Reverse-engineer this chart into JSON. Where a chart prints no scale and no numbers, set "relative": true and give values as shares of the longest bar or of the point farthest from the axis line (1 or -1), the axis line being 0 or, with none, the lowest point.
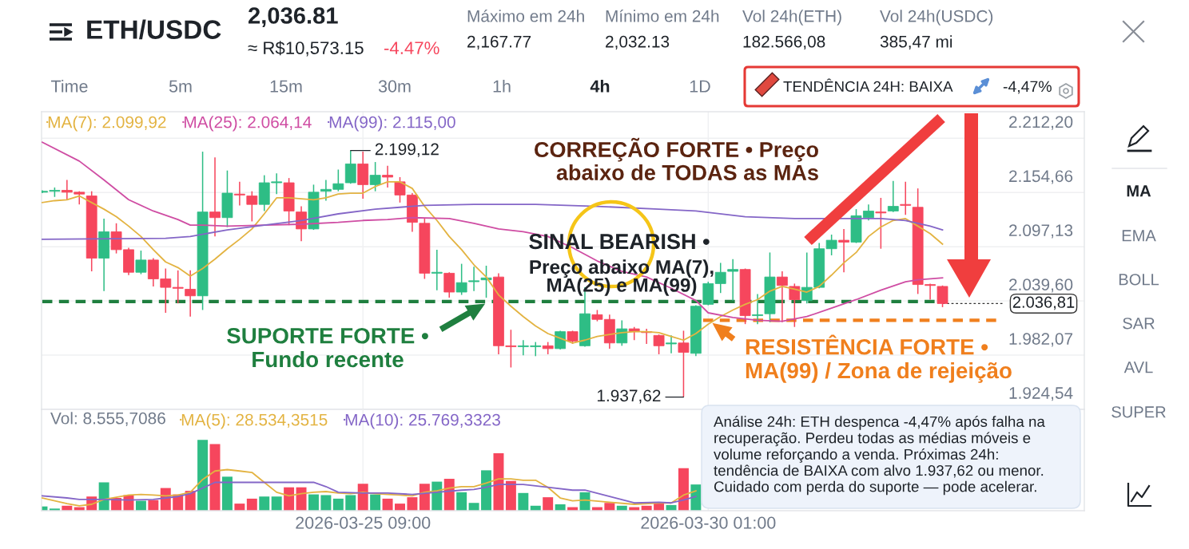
{
  "chart_data": [
    {
      "type": "candlestick",
      "title": "ETH/USDC",
      "x": [
        "2026-03-21T01:00",
        "2026-03-21T05:00",
        "2026-03-21T09:00",
        "2026-03-21T13:00",
        "2026-03-21T17:00",
        "2026-03-21T21:00",
        "2026-03-22T01:00",
        "2026-03-22T05:00",
        "2026-03-22T09:00",
        "2026-03-22T13:00",
        "2026-03-22T17:00",
        "2026-03-22T21:00",
        "2026-03-23T01:00",
        "2026-03-23T05:00",
        "2026-03-23T09:00",
        "2026-03-23T13:00",
        "2026-03-23T17:00",
        "2026-03-23T21:00",
        "2026-03-24T01:00",
        "2026-03-24T05:00",
        "2026-03-24T09:00",
        "2026-03-24T13:00",
        "2026-03-24T17:00",
        "2026-03-24T21:00",
        "2026-03-25T01:00",
        "2026-03-25T05:00",
        "2026-03-25T09:00",
        "2026-03-25T13:00",
        "2026-03-25T17:00",
        "2026-03-25T21:00",
        "2026-03-26T01:00",
        "2026-03-26T05:00",
        "2026-03-26T09:00",
        "2026-03-26T13:00",
        "2026-03-26T17:00",
        "2026-03-26T21:00",
        "2026-03-27T01:00",
        "2026-03-27T05:00",
        "2026-03-27T09:00",
        "2026-03-27T13:00",
        "2026-03-27T17:00",
        "2026-03-27T21:00",
        "2026-03-28T01:00",
        "2026-03-28T05:00",
        "2026-03-28T09:00",
        "2026-03-28T13:00",
        "2026-03-28T17:00",
        "2026-03-28T21:00",
        "2026-03-29T01:00",
        "2026-03-29T05:00",
        "2026-03-29T09:00",
        "2026-03-29T13:00",
        "2026-03-29T17:00",
        "2026-03-29T21:00",
        "2026-03-30T01:00",
        "2026-03-30T05:00",
        "2026-03-30T09:00",
        "2026-03-30T13:00",
        "2026-03-30T17:00",
        "2026-03-30T21:00",
        "2026-03-31T01:00",
        "2026-03-31T05:00",
        "2026-03-31T09:00",
        "2026-03-31T13:00",
        "2026-03-31T17:00",
        "2026-03-31T21:00",
        "2026-04-01T01:00",
        "2026-04-01T05:00",
        "2026-04-01T09:00",
        "2026-04-01T13:00",
        "2026-04-01T17:00",
        "2026-04-01T21:00",
        "2026-04-02T01:00",
        "2026-04-02T05:00"
      ],
      "ohlc": [
        [
          2155,
          2157,
          2154,
          2156
        ],
        [
          2156,
          2160,
          2150,
          2157
        ],
        [
          2157,
          2168,
          2147,
          2155
        ],
        [
          2155,
          2156,
          2142,
          2153
        ],
        [
          2151,
          2156,
          2071,
          2085
        ],
        [
          2085,
          2127,
          2050,
          2113
        ],
        [
          2113,
          2122,
          2090,
          2094
        ],
        [
          2094,
          2096,
          2067,
          2070
        ],
        [
          2070,
          2093,
          2068,
          2083
        ],
        [
          2083,
          2085,
          2055,
          2063
        ],
        [
          2063,
          2074,
          2027,
          2054
        ],
        [
          2054,
          2072,
          2037,
          2053
        ],
        [
          2052,
          2072,
          2023,
          2045
        ],
        [
          2045,
          2198,
          2030,
          2134
        ],
        [
          2134,
          2192,
          2108,
          2128
        ],
        [
          2128,
          2178,
          2118,
          2154
        ],
        [
          2153,
          2166,
          2141,
          2152
        ],
        [
          2151,
          2156,
          2124,
          2142
        ],
        [
          2142,
          2173,
          2135,
          2165
        ],
        [
          2165,
          2175,
          2153,
          2166
        ],
        [
          2165,
          2170,
          2120,
          2135
        ],
        [
          2134,
          2140,
          2103,
          2116
        ],
        [
          2116,
          2163,
          2115,
          2155
        ],
        [
          2156,
          2168,
          2146,
          2158
        ],
        [
          2158,
          2179,
          2156,
          2164
        ],
        [
          2165,
          2199.12,
          2164,
          2185
        ],
        [
          2185,
          2198,
          2148,
          2163
        ],
        [
          2163,
          2187,
          2156,
          2173
        ],
        [
          2173,
          2183,
          2160,
          2171
        ],
        [
          2166,
          2171,
          2144,
          2152
        ],
        [
          2152,
          2154,
          2113,
          2123
        ],
        [
          2122,
          2127,
          2063,
          2069
        ],
        [
          2069,
          2094,
          2051,
          2070
        ],
        [
          2069,
          2070,
          2043,
          2049
        ],
        [
          2049,
          2079,
          2046,
          2059
        ],
        [
          2060,
          2076,
          2050,
          2061
        ],
        [
          2062,
          2077,
          2043,
          2064
        ],
        [
          2065,
          2069,
          1983,
          1992
        ],
        [
          1992,
          2009,
          1969,
          1991
        ],
        [
          1991,
          1998,
          1982,
          1992
        ],
        [
          1991,
          1996,
          1981,
          1992
        ],
        [
          1992,
          1996,
          1983,
          1989
        ],
        [
          1989,
          2008,
          1988,
          2007
        ],
        [
          2007,
          2008,
          1994,
          1997
        ],
        [
          1992,
          2054,
          1991,
          2026
        ],
        [
          2025,
          2030,
          2018,
          2020
        ],
        [
          2020,
          2025,
          1989,
          1995
        ],
        [
          1995,
          2019,
          1992,
          2010
        ],
        [
          2010,
          2012,
          1998,
          2007
        ],
        [
          2007,
          2010,
          1994,
          2006
        ],
        [
          2003,
          2004,
          1983,
          1992
        ],
        [
          1994,
          2003,
          1984,
          1995
        ],
        [
          1995,
          2008,
          1937.62,
          1985
        ],
        [
          1984,
          2035,
          1981,
          2034
        ],
        [
          2036,
          2060,
          2035,
          2058
        ],
        [
          2058,
          2080,
          2048,
          2070
        ],
        [
          2071,
          2084,
          2040,
          2073
        ],
        [
          2073,
          2074,
          2015,
          2024
        ],
        [
          2024,
          2047,
          2015,
          2025
        ],
        [
          2026,
          2091,
          2017,
          2065
        ],
        [
          2065,
          2071,
          2017,
          2056
        ],
        [
          2055,
          2058,
          2012,
          2041
        ],
        [
          2040,
          2091,
          2037,
          2054
        ],
        [
          2054,
          2101,
          2053,
          2095
        ],
        [
          2095,
          2110,
          2088,
          2104
        ],
        [
          2104,
          2116,
          2070,
          2102
        ],
        [
          2102,
          2137,
          2101,
          2130
        ],
        [
          2128,
          2142,
          2125,
          2135
        ],
        [
          2134,
          2149,
          2095,
          2133
        ],
        [
          2135,
          2167,
          2134,
          2140
        ],
        [
          2142,
          2166,
          2131,
          2141
        ],
        [
          2139,
          2159,
          2047,
          2057
        ],
        [
          2057,
          2058,
          2041,
          2056
        ],
        [
          2055,
          2056,
          2033,
          2036.81
        ]
      ],
      "colors": [
        "#2ebd85",
        "#2ebd85",
        "#f6465d",
        "#f6465d",
        "#f6465d",
        "#2ebd85",
        "#f6465d",
        "#f6465d",
        "#2ebd85",
        "#f6465d",
        "#f6465d",
        "#f6465d",
        "#f6465d",
        "#2ebd85",
        "#f6465d",
        "#2ebd85",
        "#f6465d",
        "#f6465d",
        "#2ebd85",
        "#2ebd85",
        "#f6465d",
        "#f6465d",
        "#2ebd85",
        "#2ebd85",
        "#2ebd85",
        "#2ebd85",
        "#f6465d",
        "#2ebd85",
        "#f6465d",
        "#f6465d",
        "#f6465d",
        "#f6465d",
        "#2ebd85",
        "#f6465d",
        "#2ebd85",
        "#2ebd85",
        "#2ebd85",
        "#f6465d",
        "#f6465d",
        "#2ebd85",
        "#2ebd85",
        "#f6465d",
        "#2ebd85",
        "#f6465d",
        "#2ebd85",
        "#f6465d",
        "#f6465d",
        "#2ebd85",
        "#f6465d",
        "#f6465d",
        "#f6465d",
        "#2ebd85",
        "#f6465d",
        "#2ebd85",
        "#2ebd85",
        "#2ebd85",
        "#2ebd85",
        "#f6465d",
        "#2ebd85",
        "#2ebd85",
        "#f6465d",
        "#f6465d",
        "#2ebd85",
        "#2ebd85",
        "#2ebd85",
        "#f6465d",
        "#2ebd85",
        "#2ebd85",
        "#f6465d",
        "#2ebd85",
        "#f6465d",
        "#f6465d",
        "#f6465d",
        "#f6465d"
      ],
      "series": [
        {
          "name": "MA(7): 2.099,92",
          "type": "line",
          "color": "#e3b341",
          "values": [
            2144,
            2146,
            2147,
            2151,
            2144,
            2137,
            2129,
            2119,
            2108,
            2094,
            2081,
            2075,
            2066,
            2074,
            2084,
            2095,
            2105,
            2116,
            2132,
            2149,
            2149,
            2148,
            2147,
            2149,
            2153,
            2154,
            2154,
            2161,
            2166,
            2166,
            2159,
            2140,
            2125,
            2108,
            2094,
            2078,
            2065,
            2046,
            2034,
            2023,
            2013,
            2005,
            2000,
            1995,
            1998,
            2002,
            2004,
            2006,
            2007,
            2007,
            2006,
            2002,
            1998,
            2005,
            2015,
            2023,
            2030,
            2036,
            2041,
            2050,
            2055,
            2052,
            2049,
            2055,
            2067,
            2080,
            2091,
            2108,
            2118,
            2125,
            2127,
            2119,
            2111,
            2099.92
          ]
        },
        {
          "name": "MA(25): 2.064,14",
          "type": "line",
          "color": "#cf4da3",
          "x": [
            "2026-03-21T01:00",
            "2026-03-21T13:00",
            "2026-03-21T21:00",
            "2026-03-22T05:00",
            "2026-03-22T13:00",
            "2026-03-22T21:00",
            "2026-03-23T01:00",
            "2026-03-23T05:00",
            "2026-03-23T13:00",
            "2026-03-24T01:00",
            "2026-03-24T13:00",
            "2026-03-25T01:00",
            "2026-03-25T09:00",
            "2026-03-25T17:00",
            "2026-03-26T01:00",
            "2026-03-26T13:00",
            "2026-03-26T21:00",
            "2026-03-27T05:00",
            "2026-03-27T13:00",
            "2026-03-27T21:00",
            "2026-03-28T05:00",
            "2026-03-28T13:00",
            "2026-03-28T21:00",
            "2026-03-29T05:00",
            "2026-03-29T13:00",
            "2026-03-29T21:00",
            "2026-03-30T01:00",
            "2026-03-30T09:00",
            "2026-03-30T17:00",
            "2026-03-31T01:00",
            "2026-03-31T09:00",
            "2026-03-31T17:00",
            "2026-04-01T01:00",
            "2026-04-01T09:00",
            "2026-04-01T17:00",
            "2026-04-01T21:00",
            "2026-04-02T05:00"
          ],
          "values": [
            2208,
            2188,
            2168,
            2147,
            2135,
            2126,
            2120,
            2120,
            2119,
            2120,
            2121,
            2123,
            2125,
            2126,
            2128,
            2127,
            2122,
            2116,
            2113,
            2108,
            2096,
            2082,
            2071,
            2065,
            2053,
            2040,
            2027,
            2022,
            2019,
            2018,
            2023,
            2032,
            2041,
            2051,
            2060,
            2062,
            2064.14
          ]
        },
        {
          "name": "MA(99): 2.115,00",
          "type": "line",
          "color": "#8466c7",
          "x": [
            "2026-03-21T01:00",
            "2026-03-22T17:00",
            "2026-03-23T01:00",
            "2026-03-23T13:00",
            "2026-03-24T01:00",
            "2026-03-24T13:00",
            "2026-03-25T01:00",
            "2026-03-25T13:00",
            "2026-03-25T21:00",
            "2026-03-26T05:00",
            "2026-03-26T21:00",
            "2026-03-27T17:00",
            "2026-03-28T13:00",
            "2026-03-29T09:00",
            "2026-03-29T21:00",
            "2026-03-30T13:00",
            "2026-03-31T05:00",
            "2026-03-31T21:00",
            "2026-04-01T09:00",
            "2026-04-01T17:00",
            "2026-04-02T01:00",
            "2026-04-02T05:00"
          ],
          "values": [
            2105,
            2106,
            2108,
            2115,
            2120,
            2125,
            2132,
            2137,
            2139,
            2141,
            2142,
            2142,
            2140,
            2137,
            2135,
            2129,
            2127,
            2127,
            2127,
            2125,
            2119,
            2115.0
          ]
        }
      ],
      "xlim": [
        "2026-03-21T00:45",
        "2026-04-04T03:00"
      ],
      "ylim": [
        1924.54,
        2240.4
      ],
      "xticks": [
        {
          "value": "2026-03-25T09:00",
          "label": null
        },
        {
          "value": "2026-03-30T01:00",
          "label": null
        }
      ],
      "yticks": [
        {
          "value": 1924.54,
          "label": "1.924,54"
        },
        {
          "value": 1982.07,
          "label": "1.982,07"
        },
        {
          "value": 2039.6,
          "label": "2.039,60"
        },
        {
          "value": 2097.13,
          "label": "2.097,13"
        },
        {
          "value": 2154.66,
          "label": "2.154,66"
        },
        {
          "value": 2212.2,
          "label": "2.212,20"
        }
      ],
      "tick_labels": "y",
      "grid": true,
      "legend": "top left",
      "ref_lines": [
        {
          "axis": "y",
          "value": 2039,
          "label": "SUPORTE FORTE •\nFundo recente",
          "color": "#1f7f3f",
          "line_style": "dashed"
        },
        {
          "axis": "y",
          "value": 2019,
          "label": "RESISTÊNCIA FORTE •\nMA(99) / Zona de rejeição",
          "color": "#f07f1d",
          "line_style": "dashed"
        },
        {
          "axis": "y",
          "value": 2036.81,
          "label": "2.036,81",
          "color": "#333333",
          "line_style": "dotted"
        }
      ],
      "annotations": [
        "2,036.81",
        "≈ R$10,573.15",
        "-4.47%",
        "Máximo em 24h",
        "2,167.77",
        "Mínimo em 24h",
        "2,032.13",
        "Vol 24h(ETH)",
        "182.566,08",
        "Vol 24h(USDC)",
        "385,47 mi",
        "Time",
        "5m",
        "15m",
        "30m",
        "1h",
        "4h",
        "1D",
        "TENDÊNCIA 24H: BAIXA",
        "-4,47%",
        "MA",
        "EMA",
        "BOLL",
        "SAR",
        "AVL",
        "SUPER",
        {
          "text": "2.199,12",
          "x": "2026-03-25T05:00",
          "y": 2199.12
        },
        {
          "text": "1.937,62",
          "x": "2026-03-29T17:00",
          "y": 1937.62
        },
        "CORREÇÃO FORTE • Preço\nabaixo de TODAS as MAs",
        "SINAL BEARISH •",
        "Preço abaixo MA(7),\nMA(25) e MA(99)",
        "Análise 24h: ETH despenca -4,47% após falha na\nrecuperação. Perdeu todas as médias móveis e\nvolume reforçando a venda. Próximas 24h:\ntendência de BAIXA com alvo 1.937,62 ou menor.\nCuidado com perda do suporte — pode acelerar."
      ]
    },
    {
      "type": "bar",
      "relative": true,
      "x": [
        "2026-03-21T01:00",
        "2026-03-21T05:00",
        "2026-03-21T09:00",
        "2026-03-21T13:00",
        "2026-03-21T17:00",
        "2026-03-21T21:00",
        "2026-03-22T01:00",
        "2026-03-22T05:00",
        "2026-03-22T09:00",
        "2026-03-22T13:00",
        "2026-03-22T17:00",
        "2026-03-22T21:00",
        "2026-03-23T01:00",
        "2026-03-23T05:00",
        "2026-03-23T09:00",
        "2026-03-23T13:00",
        "2026-03-23T17:00",
        "2026-03-23T21:00",
        "2026-03-24T01:00",
        "2026-03-24T05:00",
        "2026-03-24T09:00",
        "2026-03-24T13:00",
        "2026-03-24T17:00",
        "2026-03-24T21:00",
        "2026-03-25T01:00",
        "2026-03-25T05:00",
        "2026-03-25T09:00",
        "2026-03-25T13:00",
        "2026-03-25T17:00",
        "2026-03-25T21:00",
        "2026-03-26T01:00",
        "2026-03-26T05:00",
        "2026-03-26T09:00",
        "2026-03-26T13:00",
        "2026-03-26T17:00",
        "2026-03-26T21:00",
        "2026-03-27T01:00",
        "2026-03-27T05:00",
        "2026-03-27T09:00",
        "2026-03-27T13:00",
        "2026-03-27T17:00",
        "2026-03-27T21:00",
        "2026-03-28T01:00",
        "2026-03-28T05:00",
        "2026-03-28T09:00",
        "2026-03-28T13:00",
        "2026-03-28T17:00",
        "2026-03-28T21:00",
        "2026-03-29T01:00",
        "2026-03-29T05:00",
        "2026-03-29T09:00",
        "2026-03-29T13:00",
        "2026-03-29T17:00",
        "2026-03-29T21:00"
      ],
      "values": [
        0.06,
        0.03,
        0.07,
        0.05,
        0.2,
        0.4,
        0.18,
        0.22,
        0.14,
        0.15,
        0.32,
        0.23,
        0.28,
        1.0,
        0.94,
        0.48,
        0.1,
        0.17,
        0.2,
        0.2,
        0.33,
        0.33,
        0.23,
        0.22,
        0.17,
        0.22,
        0.38,
        0.23,
        0.17,
        0.1,
        0.19,
        0.38,
        0.41,
        0.45,
        0.26,
        0.11,
        0.57,
        0.81,
        0.42,
        0.25,
        0.07,
        0.19,
        0.09,
        0.05,
        0.26,
        0.05,
        0.11,
        0.07,
        0.05,
        0.07,
        0.12,
        0.08,
        0.6,
        0.37
      ],
      "colors": [
        "#2ebd85",
        "#2ebd85",
        "#f6465d",
        "#f6465d",
        "#f6465d",
        "#2ebd85",
        "#f6465d",
        "#f6465d",
        "#2ebd85",
        "#f6465d",
        "#f6465d",
        "#f6465d",
        "#f6465d",
        "#2ebd85",
        "#f6465d",
        "#2ebd85",
        "#f6465d",
        "#f6465d",
        "#2ebd85",
        "#2ebd85",
        "#f6465d",
        "#f6465d",
        "#2ebd85",
        "#2ebd85",
        "#2ebd85",
        "#2ebd85",
        "#f6465d",
        "#2ebd85",
        "#f6465d",
        "#f6465d",
        "#f6465d",
        "#f6465d",
        "#2ebd85",
        "#f6465d",
        "#2ebd85",
        "#2ebd85",
        "#2ebd85",
        "#f6465d",
        "#f6465d",
        "#2ebd85",
        "#2ebd85",
        "#f6465d",
        "#2ebd85",
        "#f6465d",
        "#2ebd85",
        "#f6465d",
        "#f6465d",
        "#2ebd85",
        "#f6465d",
        "#f6465d",
        "#f6465d",
        "#2ebd85",
        "#f6465d",
        "#2ebd85"
      ],
      "series": [
        {
          "name": "MA(5): 28.534,3515",
          "type": "line",
          "color": "#e3b341",
          "x": [
            "2026-03-21T01:00",
            "2026-03-21T09:00",
            "2026-03-21T13:00",
            "2026-03-21T17:00",
            "2026-03-21T21:00",
            "2026-03-22T01:00",
            "2026-03-22T05:00",
            "2026-03-22T09:00",
            "2026-03-22T13:00",
            "2026-03-22T17:00",
            "2026-03-22T21:00",
            "2026-03-23T01:00",
            "2026-03-23T05:00",
            "2026-03-23T09:00",
            "2026-03-23T13:00",
            "2026-03-23T17:00",
            "2026-03-23T21:00",
            "2026-03-24T01:00",
            "2026-03-24T05:00",
            "2026-03-24T09:00",
            "2026-03-24T13:00",
            "2026-03-24T17:00",
            "2026-03-24T21:00",
            "2026-03-25T01:00",
            "2026-03-25T05:00",
            "2026-03-25T09:00",
            "2026-03-25T13:00",
            "2026-03-25T17:00",
            "2026-03-25T21:00",
            "2026-03-26T01:00",
            "2026-03-26T05:00",
            "2026-03-26T09:00",
            "2026-03-26T13:00",
            "2026-03-26T17:00",
            "2026-03-26T21:00",
            "2026-03-27T01:00",
            "2026-03-27T05:00",
            "2026-03-27T09:00",
            "2026-03-27T13:00",
            "2026-03-27T17:00",
            "2026-03-27T21:00",
            "2026-03-28T01:00",
            "2026-03-28T05:00",
            "2026-03-28T09:00",
            "2026-03-28T17:00",
            "2026-03-29T01:00",
            "2026-03-29T09:00",
            "2026-03-29T13:00",
            "2026-03-29T17:00",
            "2026-03-29T21:00"
          ],
          "values": [
            0.18,
            0.1,
            0.07,
            0.09,
            0.16,
            0.19,
            0.22,
            0.23,
            0.22,
            0.21,
            0.22,
            0.26,
            0.44,
            0.56,
            0.58,
            0.56,
            0.54,
            0.4,
            0.26,
            0.21,
            0.24,
            0.26,
            0.27,
            0.25,
            0.24,
            0.26,
            0.24,
            0.23,
            0.22,
            0.21,
            0.26,
            0.28,
            0.32,
            0.34,
            0.34,
            0.39,
            0.45,
            0.45,
            0.43,
            0.43,
            0.33,
            0.18,
            0.14,
            0.15,
            0.12,
            0.09,
            0.11,
            0.11,
            0.22,
            0.28
          ]
        },
        {
          "name": "MA(10): 25.769,3323",
          "type": "line",
          "color": "#8466c7",
          "x": [
            "2026-03-21T01:00",
            "2026-03-21T09:00",
            "2026-03-21T13:00",
            "2026-03-21T21:00",
            "2026-03-22T05:00",
            "2026-03-22T13:00",
            "2026-03-22T21:00",
            "2026-03-23T01:00",
            "2026-03-23T05:00",
            "2026-03-23T09:00",
            "2026-03-23T17:00",
            "2026-03-24T01:00",
            "2026-03-24T09:00",
            "2026-03-24T17:00",
            "2026-03-24T21:00",
            "2026-03-25T01:00",
            "2026-03-25T09:00",
            "2026-03-25T17:00",
            "2026-03-26T01:00",
            "2026-03-26T09:00",
            "2026-03-26T17:00",
            "2026-03-26T21:00",
            "2026-03-27T01:00",
            "2026-03-27T05:00",
            "2026-03-27T13:00",
            "2026-03-27T21:00",
            "2026-03-28T05:00",
            "2026-03-28T09:00",
            "2026-03-28T17:00",
            "2026-03-29T01:00",
            "2026-03-29T09:00",
            "2026-03-29T13:00",
            "2026-03-29T17:00",
            "2026-03-29T21:00"
          ],
          "values": [
            0.21,
            0.18,
            0.16,
            0.16,
            0.15,
            0.16,
            0.2,
            0.24,
            0.32,
            0.4,
            0.4,
            0.4,
            0.4,
            0.4,
            0.34,
            0.26,
            0.25,
            0.25,
            0.23,
            0.26,
            0.29,
            0.3,
            0.33,
            0.37,
            0.37,
            0.33,
            0.29,
            0.29,
            0.2,
            0.11,
            0.12,
            0.11,
            0.15,
            0.2
          ]
        }
      ],
      "xlim": [
        "2026-03-21T00:45",
        "2026-04-04T03:00"
      ],
      "xticks": [
        {
          "value": "2026-03-25T09:00",
          "label": "2026-03-25 09:00"
        },
        {
          "value": "2026-03-30T01:00",
          "label": "2026-03-30 01:00"
        }
      ],
      "tick_labels": "x",
      "grid": "x",
      "legend": "top left",
      "annotations": [
        "Vol: 8.555,7086"
      ]
    }
  ]
}
